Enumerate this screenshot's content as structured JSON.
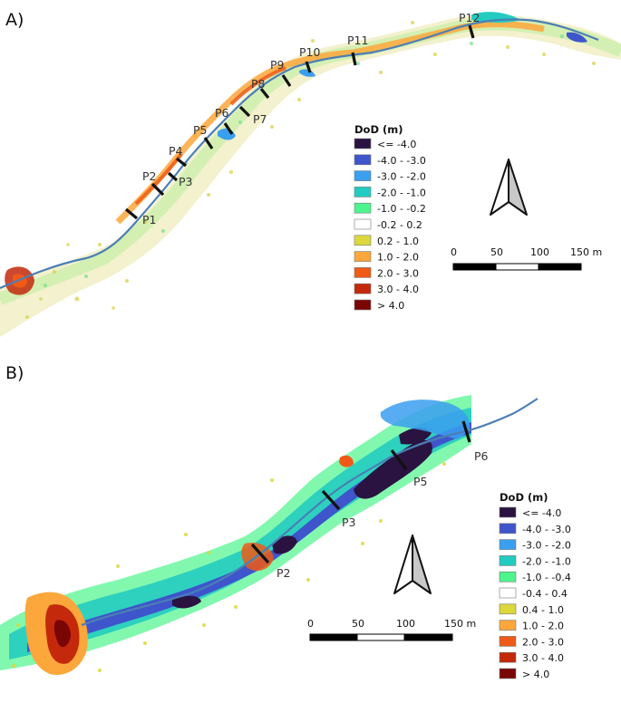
{
  "panels": [
    {
      "label": "A)",
      "profiles": [
        "P1",
        "P2",
        "P3",
        "P4",
        "P5",
        "P6",
        "P7",
        "P8",
        "P9",
        "P10",
        "P11",
        "P12"
      ],
      "legend": {
        "title": "DoD (m)",
        "classes": [
          {
            "label": "<= -4.0",
            "color": "#2a1340"
          },
          {
            "label": "-4.0 - -3.0",
            "color": "#3e55cc"
          },
          {
            "label": "-3.0 - -2.0",
            "color": "#3b9ff0"
          },
          {
            "label": "-2.0 - -1.0",
            "color": "#23ccc0"
          },
          {
            "label": "-1.0 - -0.2",
            "color": "#4df58c"
          },
          {
            "label": "-0.2 - 0.2",
            "color": "#ffffff"
          },
          {
            "label": "0.2 - 1.0",
            "color": "#dcd83b"
          },
          {
            "label": "1.0 - 2.0",
            "color": "#fba73b"
          },
          {
            "label": "2.0 - 3.0",
            "color": "#ef5a17"
          },
          {
            "label": "3.0 - 4.0",
            "color": "#c3290a"
          },
          {
            "label": "> 4.0",
            "color": "#7a0505"
          }
        ]
      },
      "scalebar": {
        "ticks": [
          "0",
          "50",
          "100",
          "150 m"
        ]
      }
    },
    {
      "label": "B)",
      "profiles": [
        "P2",
        "P3",
        "P5",
        "P6"
      ],
      "legend": {
        "title": "DoD (m)",
        "classes": [
          {
            "label": "<= -4.0",
            "color": "#2a1340"
          },
          {
            "label": "-4.0 - -3.0",
            "color": "#3e55cc"
          },
          {
            "label": "-3.0 - -2.0",
            "color": "#3b9ff0"
          },
          {
            "label": "-2.0 - -1.0",
            "color": "#23ccc0"
          },
          {
            "label": "-1.0 - -0.4",
            "color": "#4df58c"
          },
          {
            "label": "-0.4 - 0.4",
            "color": "#ffffff"
          },
          {
            "label": "0.4 - 1.0",
            "color": "#dcd83b"
          },
          {
            "label": "1.0 - 2.0",
            "color": "#fba73b"
          },
          {
            "label": "2.0 - 3.0",
            "color": "#ef5a17"
          },
          {
            "label": "3.0 - 4.0",
            "color": "#c3290a"
          },
          {
            "label": "> 4.0",
            "color": "#7a0505"
          }
        ]
      },
      "scalebar": {
        "ticks": [
          "0",
          "50",
          "100",
          "150 m"
        ]
      }
    }
  ],
  "channel_color": "#4a7fb5"
}
